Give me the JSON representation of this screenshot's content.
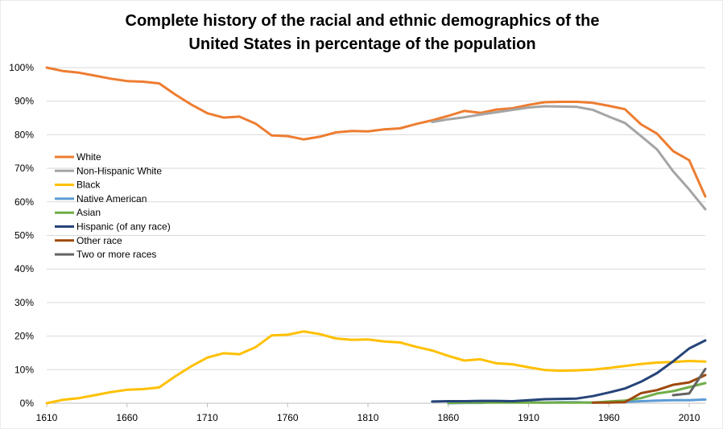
{
  "chart_data": {
    "type": "line",
    "title_lines": [
      "Complete history of the racial and ethnic demographics of the",
      "United States in percentage of the population"
    ],
    "xlabel": "",
    "ylabel": "",
    "xlim": [
      1610,
      2020
    ],
    "ylim": [
      0,
      100
    ],
    "x_ticks": [
      {
        "value": 1610,
        "label": "1610"
      },
      {
        "value": 1660,
        "label": "1660"
      },
      {
        "value": 1710,
        "label": "1710"
      },
      {
        "value": 1760,
        "label": "1760"
      },
      {
        "value": 1810,
        "label": "1810"
      },
      {
        "value": 1860,
        "label": "1860"
      },
      {
        "value": 1910,
        "label": "1910"
      },
      {
        "value": 1960,
        "label": "1960"
      },
      {
        "value": 2010,
        "label": "2010"
      }
    ],
    "y_ticks": [
      {
        "value": 0,
        "label": "0%"
      },
      {
        "value": 10,
        "label": "10%"
      },
      {
        "value": 20,
        "label": "20%"
      },
      {
        "value": 30,
        "label": "30%"
      },
      {
        "value": 40,
        "label": "40%"
      },
      {
        "value": 50,
        "label": "50%"
      },
      {
        "value": 60,
        "label": "60%"
      },
      {
        "value": 70,
        "label": "70%"
      },
      {
        "value": 80,
        "label": "80%"
      },
      {
        "value": 90,
        "label": "90%"
      },
      {
        "value": 100,
        "label": "100%"
      }
    ],
    "grid": "horizontal",
    "legend_position": "left",
    "series": [
      {
        "name": "White",
        "color": "#ED7D31",
        "x": [
          1610,
          1620,
          1630,
          1640,
          1650,
          1660,
          1670,
          1680,
          1690,
          1700,
          1710,
          1720,
          1730,
          1740,
          1750,
          1760,
          1770,
          1780,
          1790,
          1800,
          1810,
          1820,
          1830,
          1840,
          1850,
          1860,
          1870,
          1880,
          1890,
          1900,
          1910,
          1920,
          1930,
          1940,
          1950,
          1960,
          1970,
          1980,
          1990,
          2000,
          2010,
          2020
        ],
        "values": [
          100,
          99,
          98.5,
          97.6,
          96.7,
          96,
          95.8,
          95.3,
          92,
          89,
          86.4,
          85.1,
          85.4,
          83.3,
          79.8,
          79.6,
          78.6,
          79.4,
          80.7,
          81.1,
          81,
          81.6,
          81.9,
          83.2,
          84.3,
          85.6,
          87.1,
          86.5,
          87.5,
          87.9,
          88.9,
          89.7,
          89.8,
          89.8,
          89.5,
          88.6,
          87.6,
          83.1,
          80.3,
          75.1,
          72.4,
          61.6
        ]
      },
      {
        "name": "Non-Hispanic White",
        "color": "#A5A5A5",
        "x": [
          1850,
          1860,
          1870,
          1880,
          1890,
          1900,
          1910,
          1920,
          1930,
          1940,
          1950,
          1960,
          1970,
          1980,
          1990,
          2000,
          2010,
          2020
        ],
        "values": [
          83.8,
          84.6,
          85.2,
          86,
          86.7,
          87.4,
          88.1,
          88.5,
          88.4,
          88.3,
          87.4,
          85.4,
          83.5,
          79.6,
          75.6,
          69.1,
          63.7,
          57.8
        ]
      },
      {
        "name": "Black",
        "color": "#FFC000",
        "x": [
          1610,
          1620,
          1630,
          1640,
          1650,
          1660,
          1670,
          1680,
          1690,
          1700,
          1710,
          1720,
          1730,
          1740,
          1750,
          1760,
          1770,
          1780,
          1790,
          1800,
          1810,
          1820,
          1830,
          1840,
          1850,
          1860,
          1870,
          1880,
          1890,
          1900,
          1910,
          1920,
          1930,
          1940,
          1950,
          1960,
          1970,
          1980,
          1990,
          2000,
          2010,
          2020
        ],
        "values": [
          0,
          1,
          1.5,
          2.4,
          3.3,
          4,
          4.2,
          4.7,
          8,
          11,
          13.6,
          14.9,
          14.6,
          16.7,
          20.2,
          20.4,
          21.4,
          20.6,
          19.3,
          18.9,
          19,
          18.4,
          18.1,
          16.8,
          15.7,
          14.1,
          12.7,
          13.1,
          11.9,
          11.6,
          10.7,
          9.9,
          9.7,
          9.8,
          10,
          10.5,
          11.1,
          11.7,
          12.1,
          12.3,
          12.6,
          12.4
        ]
      },
      {
        "name": "Native American",
        "color": "#5B9BD5",
        "x": [
          1860,
          1870,
          1880,
          1890,
          1900,
          1910,
          1920,
          1930,
          1940,
          1950,
          1960,
          1970,
          1980,
          1990,
          2000,
          2010,
          2020
        ],
        "values": [
          0.0,
          0.1,
          0.1,
          0.4,
          0.3,
          0.3,
          0.2,
          0.3,
          0.3,
          0.2,
          0.3,
          0.4,
          0.6,
          0.8,
          0.9,
          0.9,
          1.1
        ]
      },
      {
        "name": "Asian",
        "color": "#70AD47",
        "x": [
          1860,
          1870,
          1880,
          1890,
          1900,
          1910,
          1920,
          1930,
          1940,
          1950,
          1960,
          1970,
          1980,
          1990,
          2000,
          2010,
          2020
        ],
        "values": [
          0.1,
          0.2,
          0.2,
          0.2,
          0.2,
          0.2,
          0.2,
          0.2,
          0.2,
          0.2,
          0.5,
          0.8,
          1.5,
          2.9,
          3.6,
          4.8,
          6.0
        ]
      },
      {
        "name": "Hispanic (of any race)",
        "color": "#264478",
        "x": [
          1850,
          1860,
          1870,
          1880,
          1890,
          1900,
          1910,
          1920,
          1930,
          1940,
          1950,
          1960,
          1970,
          1980,
          1990,
          2000,
          2010,
          2020
        ],
        "values": [
          0.5,
          0.6,
          0.6,
          0.7,
          0.7,
          0.6,
          0.9,
          1.2,
          1.3,
          1.4,
          2.1,
          3.2,
          4.4,
          6.4,
          9.0,
          12.5,
          16.3,
          18.7
        ]
      },
      {
        "name": "Other race",
        "color": "#9E480E",
        "x": [
          1950,
          1960,
          1970,
          1980,
          1990,
          2000,
          2010,
          2020
        ],
        "values": [
          0.2,
          0.2,
          0.3,
          3.0,
          3.9,
          5.5,
          6.2,
          8.4
        ]
      },
      {
        "name": "Two or more races",
        "color": "#636363",
        "x": [
          2000,
          2010,
          2020
        ],
        "values": [
          2.4,
          2.9,
          10.2
        ]
      }
    ]
  }
}
